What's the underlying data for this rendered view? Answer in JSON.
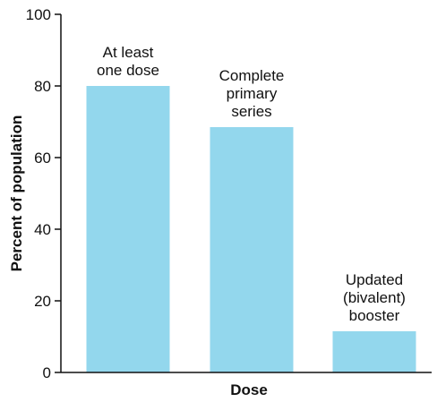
{
  "chart_data": {
    "type": "bar",
    "xlabel": "Dose",
    "ylabel": "Percent of population",
    "ylim": [
      0,
      100
    ],
    "yticks": [
      0,
      20,
      40,
      60,
      80,
      100
    ],
    "grid": false,
    "legend": "none",
    "bar_color": "#93d7ed",
    "categories": [
      [
        "At least",
        "one dose"
      ],
      [
        "Complete",
        "primary",
        "series"
      ],
      [
        "Updated",
        "(bivalent)",
        "booster"
      ]
    ],
    "values": [
      80,
      68.5,
      11.5
    ]
  }
}
